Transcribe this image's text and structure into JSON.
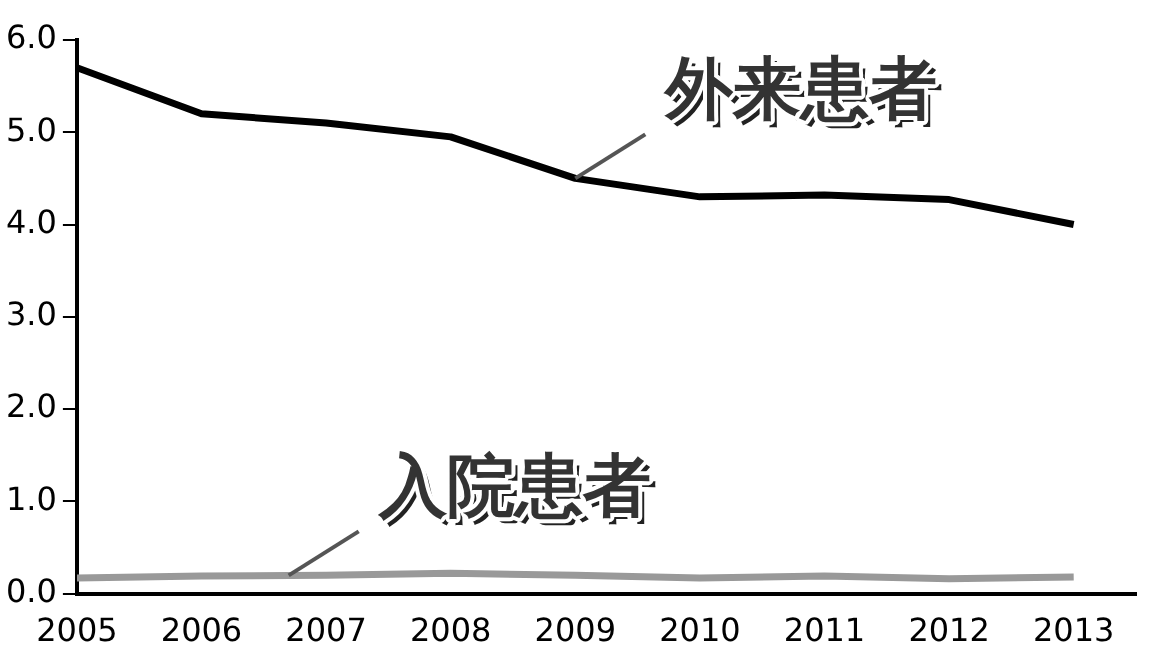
{
  "chart_data": {
    "type": "line",
    "x": [
      2005,
      2006,
      2007,
      2008,
      2009,
      2010,
      2011,
      2012,
      2013
    ],
    "xlim": [
      2005,
      2013.5
    ],
    "xticks": [
      2005,
      2006,
      2007,
      2008,
      2009,
      2010,
      2011,
      2012,
      2013
    ],
    "ylim": [
      0,
      6
    ],
    "yticks": [
      {
        "value": 0,
        "label": "0.0"
      },
      {
        "value": 1,
        "label": "1.0"
      },
      {
        "value": 2,
        "label": "2.0"
      },
      {
        "value": 3,
        "label": "3.0"
      },
      {
        "value": 4,
        "label": "4.0"
      },
      {
        "value": 5,
        "label": "5.0"
      },
      {
        "value": 6,
        "label": "6.0"
      }
    ],
    "grid": false,
    "legend": false,
    "marker": "none",
    "line_style": "solid",
    "series": [
      {
        "name": "外来患者",
        "color": "#000000",
        "values": [
          5.7,
          5.2,
          5.1,
          4.95,
          4.5,
          4.3,
          4.32,
          4.27,
          4.0
        ]
      },
      {
        "name": "入院患者",
        "color": "#999999",
        "values": [
          0.17,
          0.19,
          0.2,
          0.22,
          0.2,
          0.17,
          0.19,
          0.16,
          0.18
        ]
      }
    ]
  }
}
